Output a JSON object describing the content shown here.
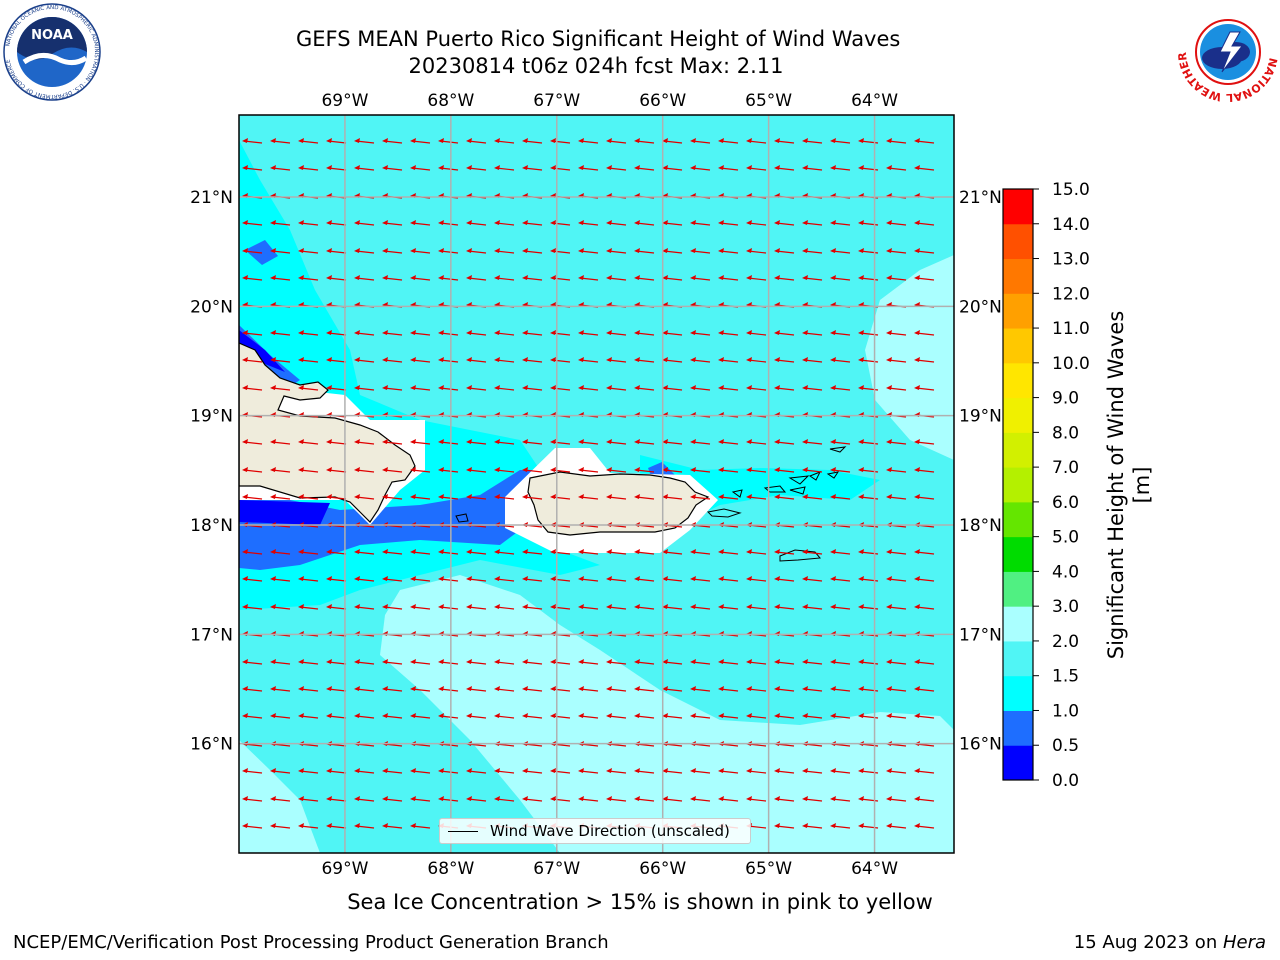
{
  "title": {
    "line1": "GEFS MEAN Puerto Rico Significant Height of Wind Waves",
    "line2": "20230814 t06z 024h fcst   Max: 2.11"
  },
  "map": {
    "lon_ticks": [
      "69°W",
      "68°W",
      "67°W",
      "66°W",
      "65°W",
      "64°W"
    ],
    "lat_ticks": [
      "21°N",
      "20°N",
      "19°N",
      "18°N",
      "17°N",
      "16°N"
    ],
    "lon_range": [
      -70.0,
      -63.25
    ],
    "lat_range": [
      15.0,
      21.75
    ],
    "arrow_color": "#e00000",
    "land_color": "#efecdc",
    "wave_direction": "westward"
  },
  "legend": {
    "label": "Wind Wave Direction (unscaled)"
  },
  "colorbar": {
    "label": "Significant Height of Wind Waves [m]",
    "levels": [
      "0.0",
      "0.5",
      "1.0",
      "1.5",
      "2.0",
      "3.0",
      "4.0",
      "5.0",
      "6.0",
      "7.0",
      "8.0",
      "9.0",
      "10.0",
      "11.0",
      "12.0",
      "13.0",
      "14.0",
      "15.0"
    ],
    "colors": [
      "#0000ff",
      "#1e6eff",
      "#00ffff",
      "#50f5f5",
      "#aaffff",
      "#50f082",
      "#00dc00",
      "#64e600",
      "#b4f000",
      "#d2f000",
      "#f0f000",
      "#ffe600",
      "#ffc800",
      "#ffa000",
      "#ff7800",
      "#ff5000",
      "#ff0000"
    ]
  },
  "sea_ice_note": "Sea Ice Concentration > 15% is shown in pink to yellow",
  "footer": {
    "left": "NCEP/EMC/Verification Post Processing Product Generation Branch",
    "right_prefix": "15 Aug 2023 on ",
    "right_host": "Hera"
  },
  "logos": {
    "noaa": {
      "text": "NOAA",
      "ring_text": "NATIONAL OCEANIC AND ATMOSPHERIC ADMINISTRATION · U.S. DEPARTMENT OF COMMERCE"
    },
    "nws": {
      "ring_text": "NATIONAL WEATHER SERVICE"
    }
  }
}
